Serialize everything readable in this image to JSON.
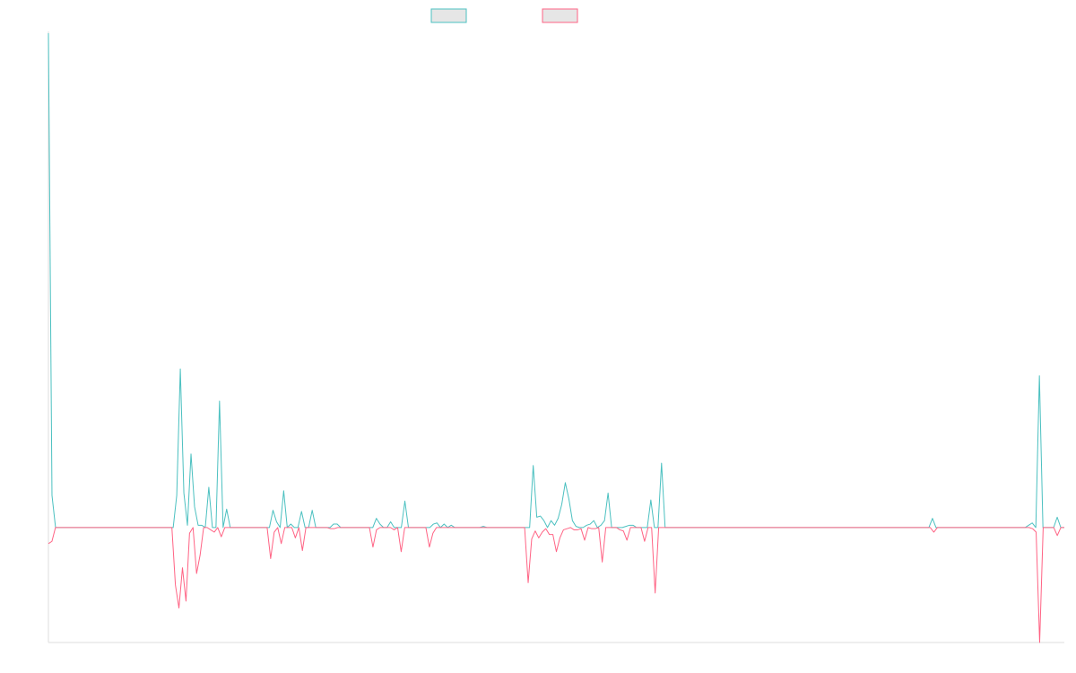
{
  "chart_data": {
    "type": "line",
    "title": "",
    "xlabel": "",
    "ylabel": "",
    "grid": false,
    "legend_position": "top-center",
    "ylim": [
      -100,
      430
    ],
    "series": [
      {
        "color": "#4bc0c0",
        "values": [
          430,
          28,
          0,
          0,
          0,
          0,
          0,
          0,
          0,
          0,
          0,
          0,
          0,
          0,
          0,
          0,
          0,
          0,
          0,
          0,
          0,
          0,
          0,
          0,
          0,
          0,
          0,
          0,
          0,
          0,
          0,
          0,
          0,
          0,
          0,
          0,
          28,
          138,
          30,
          2,
          64,
          18,
          2,
          2,
          0,
          35,
          0,
          0,
          110,
          0,
          16,
          0,
          0,
          0,
          0,
          0,
          0,
          0,
          0,
          0,
          0,
          0,
          0,
          15,
          5,
          0,
          32,
          0,
          3,
          0,
          0,
          14,
          0,
          0,
          15,
          0,
          0,
          0,
          0,
          0,
          3,
          3,
          0,
          0,
          0,
          0,
          0,
          0,
          0,
          0,
          0,
          0,
          8,
          3,
          0,
          0,
          5,
          0,
          0,
          0,
          23,
          0,
          0,
          0,
          0,
          0,
          0,
          0,
          3,
          4,
          0,
          3,
          0,
          2,
          0,
          0,
          0,
          0,
          0,
          0,
          0,
          0,
          1,
          0,
          0,
          0,
          0,
          0,
          0,
          0,
          0,
          0,
          0,
          0,
          0,
          0,
          54,
          9,
          10,
          6,
          0,
          6,
          2,
          8,
          20,
          39,
          25,
          6,
          1,
          0,
          0,
          2,
          3,
          6,
          0,
          2,
          6,
          30,
          0,
          0,
          0,
          0,
          1,
          2,
          2,
          0,
          0,
          0,
          0,
          24,
          0,
          0,
          56,
          0,
          0,
          0,
          0,
          0,
          0,
          0,
          0,
          0,
          0,
          0,
          0,
          0,
          0,
          0,
          0,
          0,
          0,
          0,
          0,
          0,
          0,
          0,
          0,
          0,
          0,
          0,
          0,
          0,
          0,
          0,
          0,
          0,
          0,
          0,
          0,
          0,
          0,
          0,
          0,
          0,
          0,
          0,
          0,
          0,
          0,
          0,
          0,
          0,
          0,
          0,
          0,
          0,
          0,
          0,
          0,
          0,
          0,
          0,
          0,
          0,
          0,
          0,
          0,
          0,
          0,
          0,
          0,
          0,
          0,
          0,
          0,
          0,
          0,
          0,
          8,
          0,
          0,
          0,
          0,
          0,
          0,
          0,
          0,
          0,
          0,
          0,
          0,
          0,
          0,
          0,
          0,
          0,
          0,
          0,
          0,
          0,
          0,
          0,
          0,
          0,
          0,
          2,
          4,
          0,
          132,
          0,
          0,
          0,
          0,
          9,
          0,
          0
        ]
      },
      {
        "color": "#ff6384",
        "values": [
          -14,
          -12,
          0,
          0,
          0,
          0,
          0,
          0,
          0,
          0,
          0,
          0,
          0,
          0,
          0,
          0,
          0,
          0,
          0,
          0,
          0,
          0,
          0,
          0,
          0,
          0,
          0,
          0,
          0,
          0,
          0,
          0,
          0,
          0,
          0,
          0,
          -50,
          -70,
          -35,
          -64,
          -5,
          0,
          -40,
          -24,
          0,
          0,
          -2,
          -4,
          0,
          -8,
          0,
          0,
          0,
          0,
          0,
          0,
          0,
          0,
          0,
          0,
          0,
          0,
          0,
          -27,
          -4,
          0,
          -14,
          0,
          0,
          0,
          -9,
          0,
          -20,
          0,
          0,
          0,
          0,
          0,
          0,
          0,
          -1,
          -1,
          0,
          0,
          0,
          0,
          0,
          0,
          0,
          0,
          0,
          0,
          -17,
          -2,
          0,
          0,
          0,
          0,
          -2,
          0,
          -21,
          0,
          0,
          0,
          0,
          0,
          0,
          0,
          -17,
          -5,
          0,
          0,
          0,
          0,
          0,
          0,
          0,
          0,
          0,
          0,
          0,
          0,
          0,
          0,
          0,
          0,
          0,
          0,
          0,
          0,
          0,
          0,
          0,
          0,
          0,
          0,
          -48,
          -10,
          -3,
          -9,
          -4,
          -1,
          -6,
          -6,
          -21,
          -9,
          -2,
          -1,
          0,
          -2,
          -2,
          -1,
          -11,
          0,
          -1,
          -1,
          0,
          -30,
          0,
          0,
          0,
          0,
          -2,
          -3,
          -11,
          0,
          0,
          0,
          0,
          -12,
          0,
          0,
          -57,
          0,
          0,
          0,
          0,
          0,
          0,
          0,
          0,
          0,
          0,
          0,
          0,
          0,
          0,
          0,
          0,
          0,
          0,
          0,
          0,
          0,
          0,
          0,
          0,
          0,
          0,
          0,
          0,
          0,
          0,
          0,
          0,
          0,
          0,
          0,
          0,
          0,
          0,
          0,
          0,
          0,
          0,
          0,
          0,
          0,
          0,
          0,
          0,
          0,
          0,
          0,
          0,
          0,
          0,
          0,
          0,
          0,
          0,
          0,
          0,
          0,
          0,
          0,
          0,
          0,
          0,
          0,
          0,
          0,
          0,
          0,
          0,
          0,
          0,
          0,
          0,
          0,
          0,
          -4,
          0,
          0,
          0,
          0,
          0,
          0,
          0,
          0,
          0,
          0,
          0,
          0,
          0,
          0,
          0,
          0,
          0,
          0,
          0,
          0,
          0,
          0,
          0,
          0,
          0,
          0,
          0,
          -1,
          -4,
          -100,
          0,
          0,
          0,
          0,
          -7,
          0,
          0
        ]
      }
    ]
  }
}
